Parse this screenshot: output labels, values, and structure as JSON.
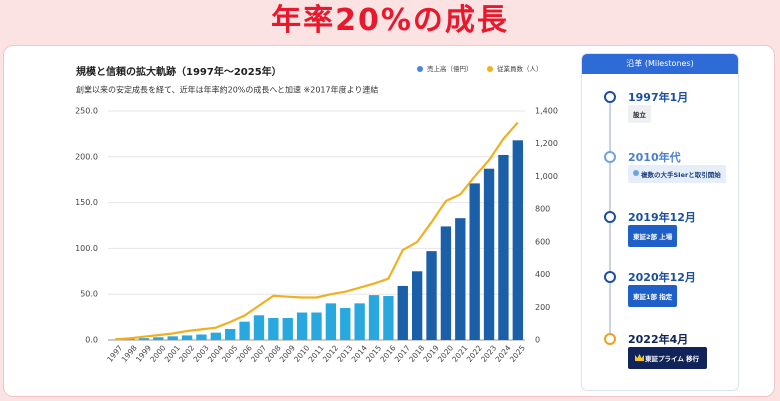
{
  "header": {
    "title": "年率20%の成長"
  },
  "chart_data": {
    "type": "bar",
    "title": "規模と信頼の拡大軌跡（1997年～2025年）",
    "subtitle": "創業以来の安定成長を経て、近年は年率約20%の成長へと加速 ※2017年度より連結",
    "categories": [
      "1997",
      "1998",
      "1999",
      "2000",
      "2001",
      "2002",
      "2003",
      "2004",
      "2005",
      "2006",
      "2007",
      "2008",
      "2009",
      "2010",
      "2011",
      "2012",
      "2013",
      "2014",
      "2015",
      "2016",
      "2017",
      "2018",
      "2019",
      "2020",
      "2021",
      "2022",
      "2023",
      "2024",
      "2025"
    ],
    "series": [
      {
        "name": "売上高（億円）",
        "type": "bar",
        "color": "#4a86e0",
        "colors": [
          "#29a8e0",
          "#29a8e0",
          "#29a8e0",
          "#29a8e0",
          "#29a8e0",
          "#29a8e0",
          "#29a8e0",
          "#29a8e0",
          "#29a8e0",
          "#29a8e0",
          "#29a8e0",
          "#29a8e0",
          "#29a8e0",
          "#29a8e0",
          "#29a8e0",
          "#29a8e0",
          "#29a8e0",
          "#29a8e0",
          "#29a8e0",
          "#29a8e0",
          "#1b5fa8",
          "#1b5fa8",
          "#1b5fa8",
          "#1b5fa8",
          "#1b5fa8",
          "#1b5fa8",
          "#1b5fa8",
          "#1b5fa8",
          "#1b5fa8"
        ],
        "values": [
          0.5,
          1,
          2,
          3,
          4,
          5,
          6,
          8,
          12,
          20,
          27,
          24,
          24,
          30,
          30,
          40,
          35,
          40,
          49,
          48,
          59,
          75,
          97,
          124,
          133,
          171,
          187,
          202,
          218
        ]
      },
      {
        "name": "従業員数（人）",
        "type": "line",
        "axis": "y2",
        "color": "#f0b020",
        "values": [
          5,
          10,
          20,
          30,
          40,
          55,
          65,
          75,
          110,
          150,
          210,
          270,
          265,
          260,
          260,
          280,
          295,
          320,
          345,
          375,
          550,
          600,
          720,
          850,
          890,
          1000,
          1100,
          1230,
          1330
        ]
      }
    ],
    "ylim": [
      0,
      250
    ],
    "yticks": [
      {
        "value": 0,
        "label": "0.0"
      },
      {
        "value": 50,
        "label": "50.0"
      },
      {
        "value": 100,
        "label": "100.0"
      },
      {
        "value": 150,
        "label": "150.0"
      },
      {
        "value": 200,
        "label": "200.0"
      },
      {
        "value": 250,
        "label": "250.0"
      }
    ],
    "y2lim": [
      0,
      1400
    ],
    "y2ticks": [
      0,
      200,
      400,
      600,
      800,
      {
        "value": 1000,
        "label": "1,000"
      },
      {
        "value": 1200,
        "label": "1,200"
      },
      {
        "value": 1400,
        "label": "1,400"
      }
    ],
    "grid": true
  },
  "milestones": {
    "title": "沿革 (Milestones)",
    "items": [
      {
        "date": "1997年1月",
        "label": "設立"
      },
      {
        "date": "2010年代",
        "label": "複数の大手SIerと取引開始"
      },
      {
        "date": "2019年12月",
        "label": "東証2部 上場"
      },
      {
        "date": "2020年12月",
        "label": "東証1部 指定"
      },
      {
        "date": "2022年4月",
        "label": "東証プライム 移行"
      }
    ]
  }
}
